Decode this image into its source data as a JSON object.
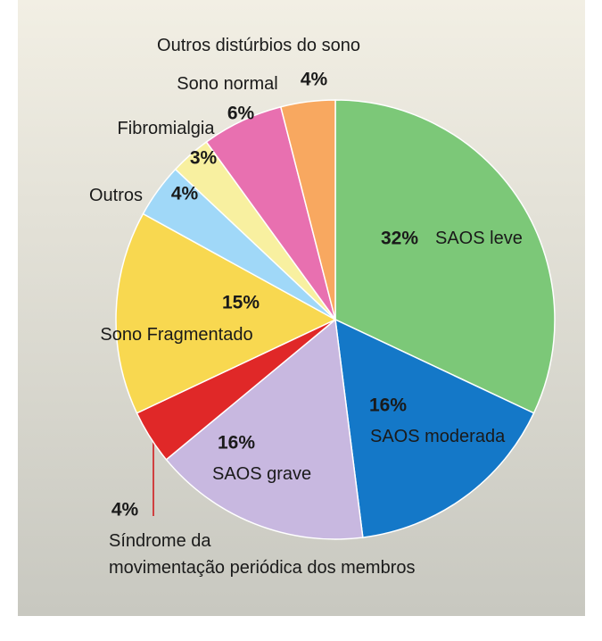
{
  "chart_data": {
    "type": "pie",
    "categories": [
      "SAOS leve",
      "SAOS moderada",
      "SAOS grave",
      "Síndrome da\nmovimentação periódica dos membros",
      "Sono Fragmentado",
      "Outros",
      "Fibromialgia",
      "Sono normal",
      "Outros distúrbios do sono"
    ],
    "values": [
      32,
      16,
      16,
      4,
      15,
      4,
      3,
      6,
      4
    ],
    "value_labels": [
      "32%",
      "16%",
      "16%",
      "4%",
      "15%",
      "4%",
      "3%",
      "6%",
      "4%"
    ],
    "colors": [
      "#7cc878",
      "#1478c8",
      "#c8b8e0",
      "#e02828",
      "#f8d850",
      "#a0d8f8",
      "#f8f0a0",
      "#e870b0",
      "#f8a860"
    ]
  }
}
